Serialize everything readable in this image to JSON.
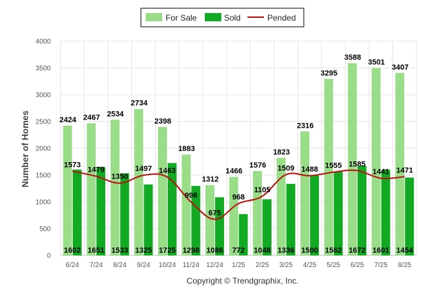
{
  "chart_data": {
    "type": "bar",
    "ylabel": "Number of Homes",
    "ylim": [
      0,
      4000
    ],
    "yticks": [
      0,
      500,
      1000,
      1500,
      2000,
      2500,
      3000,
      3500,
      4000
    ],
    "categories": [
      "6/24",
      "7/24",
      "8/24",
      "9/24",
      "10/24",
      "11/24",
      "12/24",
      "1/25",
      "2/25",
      "3/25",
      "4/25",
      "5/25",
      "6/25",
      "7/25",
      "8/25"
    ],
    "series": [
      {
        "name": "For Sale",
        "kind": "bar",
        "color": "#99dd88",
        "values": [
          2424,
          2467,
          2534,
          2734,
          2398,
          1883,
          1312,
          1466,
          1576,
          1823,
          2316,
          3295,
          3588,
          3501,
          3407
        ]
      },
      {
        "name": "Sold",
        "kind": "bar",
        "color": "#11aa22",
        "values": [
          1602,
          1651,
          1533,
          1325,
          1725,
          1298,
          1086,
          772,
          1048,
          1336,
          1500,
          1562,
          1672,
          1601,
          1454
        ]
      },
      {
        "name": "Pended",
        "kind": "line",
        "color": "#bb1111",
        "values": [
          1573,
          1479,
          1350,
          1497,
          1463,
          998,
          675,
          968,
          1105,
          1509,
          1488,
          1555,
          1585,
          1441,
          1471
        ]
      }
    ],
    "legend_position": "top-center",
    "grid": true
  },
  "footer": {
    "copyright": "Copyright © Trendgraphix, Inc."
  }
}
